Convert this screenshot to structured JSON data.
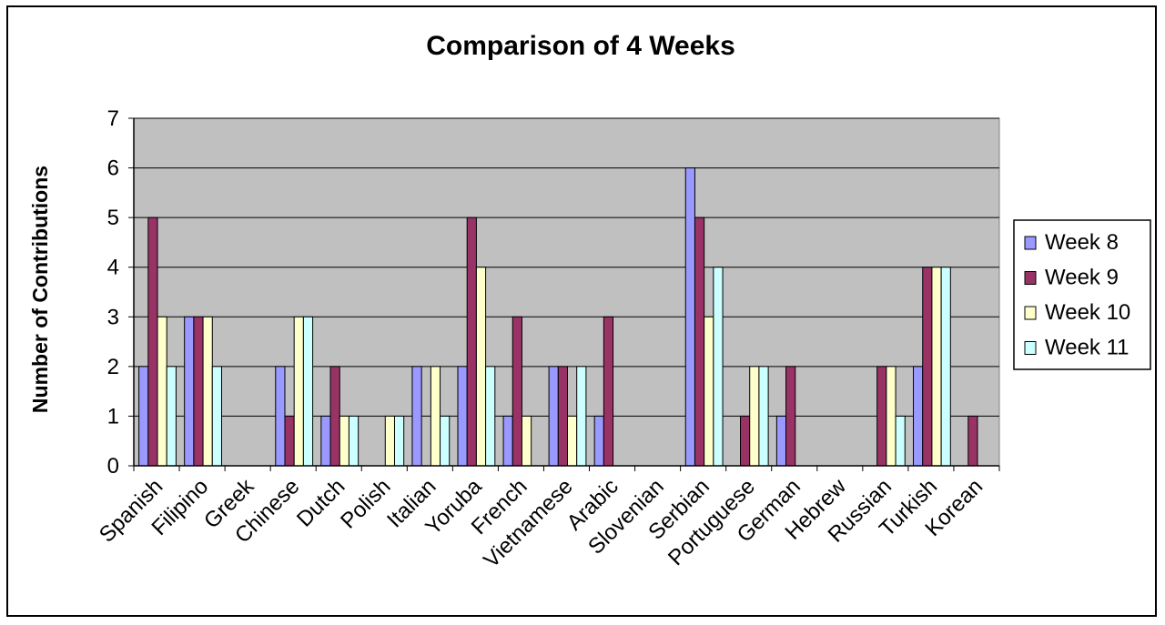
{
  "chart_data": {
    "type": "bar",
    "title": "Comparison of 4 Weeks",
    "xlabel": "",
    "ylabel": "Number of Contributions",
    "ylim": [
      0,
      7
    ],
    "yticks": [
      0,
      1,
      2,
      3,
      4,
      5,
      6,
      7
    ],
    "grid": true,
    "legend_position": "right",
    "categories": [
      "Spanish",
      "Filipino",
      "Greek",
      "Chinese",
      "Dutch",
      "Polish",
      "Italian",
      "Yoruba",
      "French",
      "Vietnamese",
      "Arabic",
      "Slovenian",
      "Serbian",
      "Portuguese",
      "German",
      "Hebrew",
      "Russian",
      "Turkish",
      "Korean"
    ],
    "series": [
      {
        "name": "Week 8",
        "color": "#9999ff",
        "values": [
          2,
          3,
          0,
          2,
          1,
          0,
          2,
          2,
          1,
          2,
          1,
          0,
          6,
          0,
          1,
          0,
          0,
          2,
          0
        ]
      },
      {
        "name": "Week 9",
        "color": "#993366",
        "values": [
          5,
          3,
          0,
          1,
          2,
          0,
          0,
          5,
          3,
          2,
          3,
          0,
          5,
          1,
          2,
          0,
          2,
          4,
          1
        ]
      },
      {
        "name": "Week 10",
        "color": "#ffffcc",
        "values": [
          3,
          3,
          0,
          3,
          1,
          1,
          2,
          4,
          1,
          1,
          0,
          0,
          3,
          2,
          0,
          0,
          2,
          4,
          0
        ]
      },
      {
        "name": "Week 11",
        "color": "#ccffff",
        "values": [
          2,
          2,
          0,
          3,
          1,
          1,
          1,
          2,
          0,
          2,
          0,
          0,
          4,
          2,
          0,
          0,
          1,
          4,
          0
        ]
      }
    ],
    "plot_background": "#c0c0c0"
  }
}
